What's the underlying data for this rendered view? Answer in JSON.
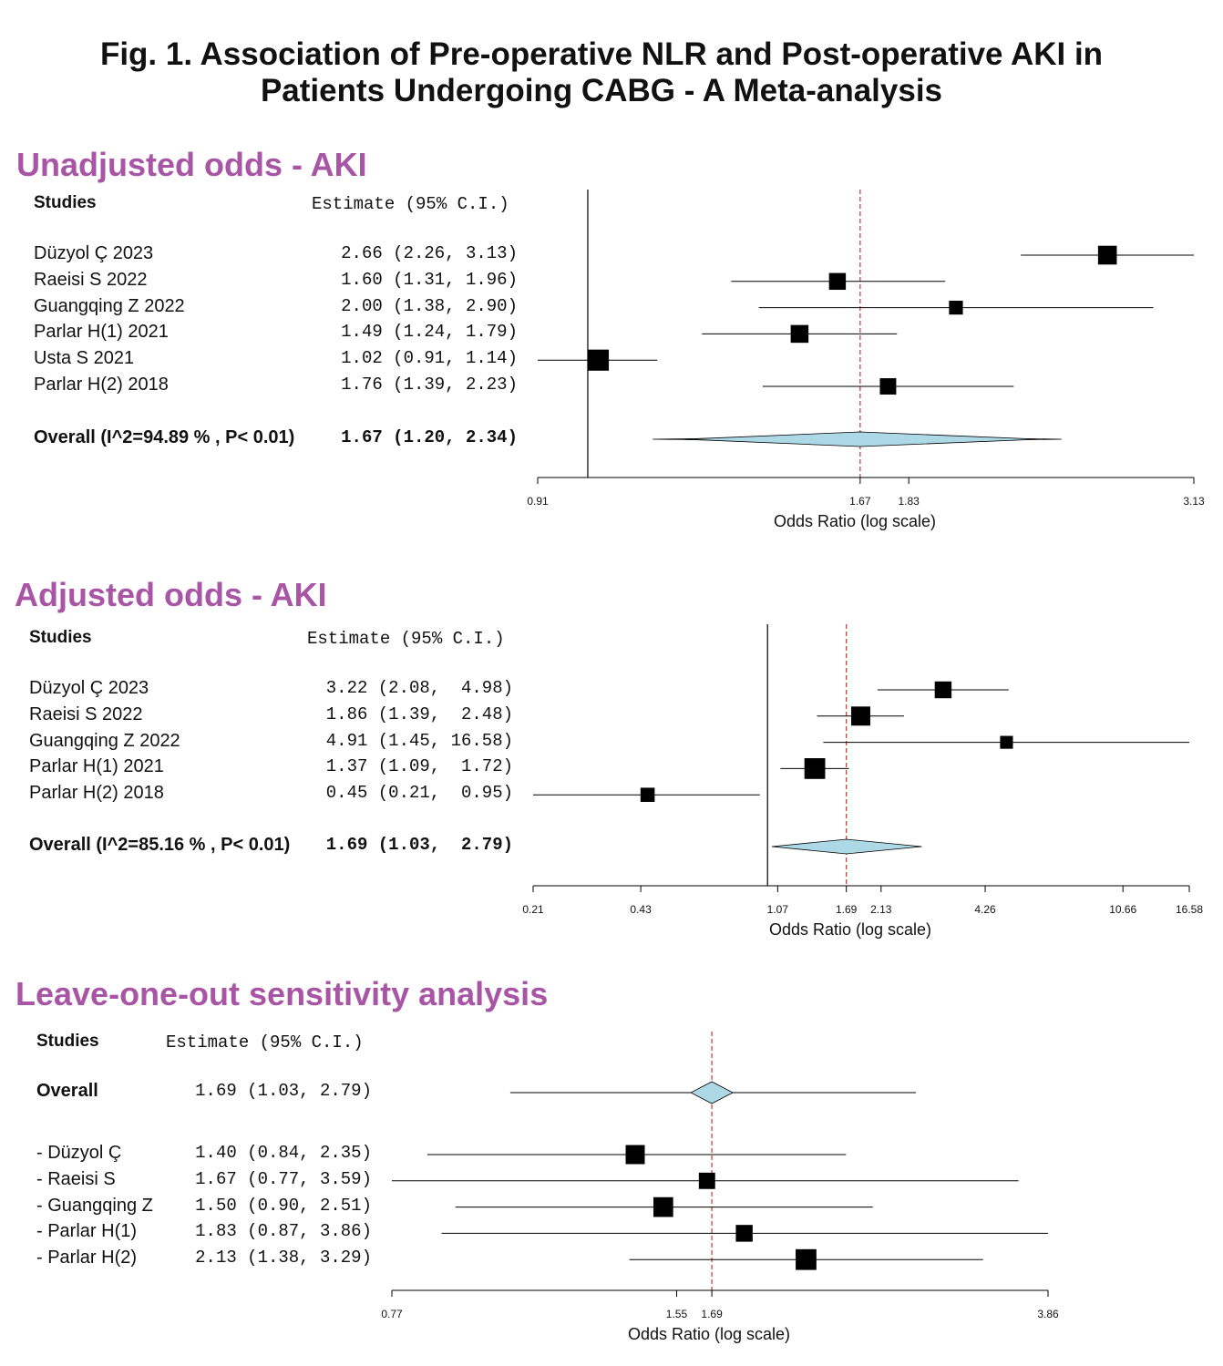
{
  "figure_title_line1": "Fig. 1. Association of Pre-operative NLR and Post-operative AKI in",
  "figure_title_line2": "Patients Undergoing CABG - A Meta-analysis",
  "colors": {
    "section_title": "#a855a5",
    "diamond": "#add8e6",
    "ref_line": "#c0392b"
  },
  "chart_data": [
    {
      "type": "forest",
      "title": "Unadjusted odds - AKI",
      "studies_header": "Studies",
      "estimate_header": "Estimate (95% C.I.)",
      "xlabel": "Odds Ratio (log scale)",
      "xlim": [
        0.91,
        3.13
      ],
      "null_line": 1.0,
      "pooled_line": 1.67,
      "ticks": [
        0.91,
        1.67,
        1.83,
        3.13
      ],
      "tick_labels": [
        "0.91",
        "1.67",
        "1.83",
        "3.13"
      ],
      "studies": [
        {
          "label": "Düzyol Ç 2023",
          "est": 2.66,
          "lo": 2.26,
          "hi": 3.13,
          "est_text": "2.66 (2.26, 3.13)",
          "weight": 0.7
        },
        {
          "label": "Raeisi S 2022",
          "est": 1.6,
          "lo": 1.31,
          "hi": 1.96,
          "est_text": "1.60 (1.31, 1.96)",
          "weight": 0.58
        },
        {
          "label": "Guangqing Z 2022",
          "est": 2.0,
          "lo": 1.38,
          "hi": 2.9,
          "est_text": "2.00 (1.38, 2.90)",
          "weight": 0.4
        },
        {
          "label": "Parlar H(1) 2021",
          "est": 1.49,
          "lo": 1.24,
          "hi": 1.79,
          "est_text": "1.49 (1.24, 1.79)",
          "weight": 0.64
        },
        {
          "label": "Usta S 2021",
          "est": 1.02,
          "lo": 0.91,
          "hi": 1.14,
          "est_text": "1.02 (0.91, 1.14)",
          "weight": 0.84
        },
        {
          "label": "Parlar H(2) 2018",
          "est": 1.76,
          "lo": 1.39,
          "hi": 2.23,
          "est_text": "1.76 (1.39, 2.23)",
          "weight": 0.55
        }
      ],
      "overall": {
        "label": "Overall (I^2=94.89 % , P< 0.01)",
        "est": 1.67,
        "lo": 1.2,
        "hi": 2.34,
        "est_text": "1.67 (1.20, 2.34)",
        "pi_lo": 1.13,
        "pi_hi": 2.44
      }
    },
    {
      "type": "forest",
      "title": "Adjusted odds - AKI",
      "studies_header": "Studies",
      "estimate_header": "Estimate (95% C.I.)",
      "xlabel": "Odds Ratio (log scale)",
      "xlim": [
        0.21,
        16.58
      ],
      "null_line": 1.0,
      "pooled_line": 1.69,
      "ticks": [
        0.21,
        0.43,
        1.07,
        1.69,
        2.13,
        4.26,
        10.66,
        16.58
      ],
      "tick_labels": [
        "0.21",
        "0.43",
        "1.07",
        "1.69",
        "2.13",
        "4.26",
        "10.66",
        "16.58"
      ],
      "studies": [
        {
          "label": "Düzyol Ç 2023",
          "est": 3.22,
          "lo": 2.08,
          "hi": 4.98,
          "est_text": "3.22 (2.08,  4.98)",
          "weight": 0.58
        },
        {
          "label": "Raeisi S 2022",
          "est": 1.86,
          "lo": 1.39,
          "hi": 2.48,
          "est_text": "1.86 (1.39,  2.48)",
          "weight": 0.72
        },
        {
          "label": "Guangqing Z 2022",
          "est": 4.91,
          "lo": 1.45,
          "hi": 16.58,
          "est_text": "4.91 (1.45, 16.58)",
          "weight": 0.34
        },
        {
          "label": "Parlar H(1) 2021",
          "est": 1.37,
          "lo": 1.09,
          "hi": 1.72,
          "est_text": "1.37 (1.09,  1.72)",
          "weight": 0.82
        },
        {
          "label": "Parlar H(2) 2018",
          "est": 0.45,
          "lo": 0.21,
          "hi": 0.95,
          "est_text": "0.45 (0.21,  0.95)",
          "weight": 0.42
        }
      ],
      "overall": {
        "label": "Overall (I^2=85.16 % , P< 0.01)",
        "est": 1.69,
        "lo": 1.03,
        "hi": 2.79,
        "est_text": "1.69 (1.03,  2.79)",
        "pi_lo": 1.03,
        "pi_hi": 2.79
      }
    },
    {
      "type": "forest",
      "title": "Leave-one-out sensitivity analysis",
      "studies_header": "Studies",
      "estimate_header": "Estimate (95% C.I.)",
      "xlabel": "Odds Ratio (log scale)",
      "xlim": [
        0.77,
        3.86
      ],
      "null_line": null,
      "pooled_line": 1.69,
      "ticks": [
        0.77,
        1.55,
        1.69,
        3.86
      ],
      "tick_labels": [
        "0.77",
        "1.55",
        "1.69",
        "3.86"
      ],
      "overall": {
        "label": "Overall",
        "est": 1.69,
        "lo": 1.03,
        "hi": 2.79,
        "est_text": "1.69 (1.03, 2.79)",
        "line_lo": 1.03,
        "line_hi": 2.79
      },
      "studies": [
        {
          "label": "- Düzyol Ç",
          "est": 1.4,
          "lo": 0.84,
          "hi": 2.35,
          "est_text": "1.40 (0.84, 2.35)",
          "weight": 0.72
        },
        {
          "label": "- Raeisi S",
          "est": 1.67,
          "lo": 0.77,
          "hi": 3.59,
          "est_text": "1.67 (0.77, 3.59)",
          "weight": 0.55
        },
        {
          "label": "- Guangqing Z",
          "est": 1.5,
          "lo": 0.9,
          "hi": 2.51,
          "est_text": "1.50 (0.90, 2.51)",
          "weight": 0.76
        },
        {
          "label": "- Parlar H(1)",
          "est": 1.83,
          "lo": 0.87,
          "hi": 3.86,
          "est_text": "1.83 (0.87, 3.86)",
          "weight": 0.58
        },
        {
          "label": "- Parlar H(2)",
          "est": 2.13,
          "lo": 1.38,
          "hi": 3.29,
          "est_text": "2.13 (1.38, 3.29)",
          "weight": 0.82
        }
      ]
    }
  ]
}
